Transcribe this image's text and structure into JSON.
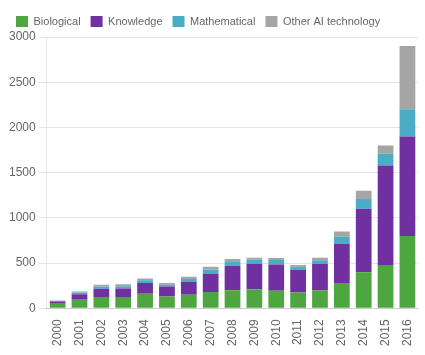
{
  "chart_data": {
    "type": "bar",
    "stacked": true,
    "categories": [
      "2000",
      "2001",
      "2002",
      "2003",
      "2004",
      "2005",
      "2006",
      "2007",
      "2008",
      "2009",
      "2010",
      "2011",
      "2012",
      "2013",
      "2014",
      "2015",
      "2016"
    ],
    "series": [
      {
        "name": "Biological",
        "color": "#4EA640",
        "values": [
          50,
          95,
          125,
          125,
          160,
          130,
          150,
          180,
          200,
          210,
          195,
          175,
          200,
          280,
          400,
          480,
          800
        ]
      },
      {
        "name": "Knowledge",
        "color": "#7030A0",
        "values": [
          25,
          60,
          90,
          95,
          120,
          110,
          140,
          200,
          270,
          280,
          290,
          250,
          290,
          430,
          700,
          1100,
          1100
        ]
      },
      {
        "name": "Mathematical",
        "color": "#4BACC6",
        "values": [
          5,
          20,
          25,
          25,
          30,
          20,
          35,
          50,
          50,
          50,
          50,
          35,
          40,
          80,
          110,
          130,
          300
        ]
      },
      {
        "name": "Other AI technology",
        "color": "#A5A5A5",
        "values": [
          5,
          10,
          20,
          20,
          20,
          20,
          25,
          30,
          25,
          20,
          20,
          20,
          30,
          60,
          90,
          90,
          700
        ]
      }
    ],
    "ylim": [
      0,
      3000
    ],
    "yticks": [
      0,
      500,
      1000,
      1500,
      2000,
      2500,
      3000
    ],
    "grid": true,
    "legend": "upper left"
  }
}
